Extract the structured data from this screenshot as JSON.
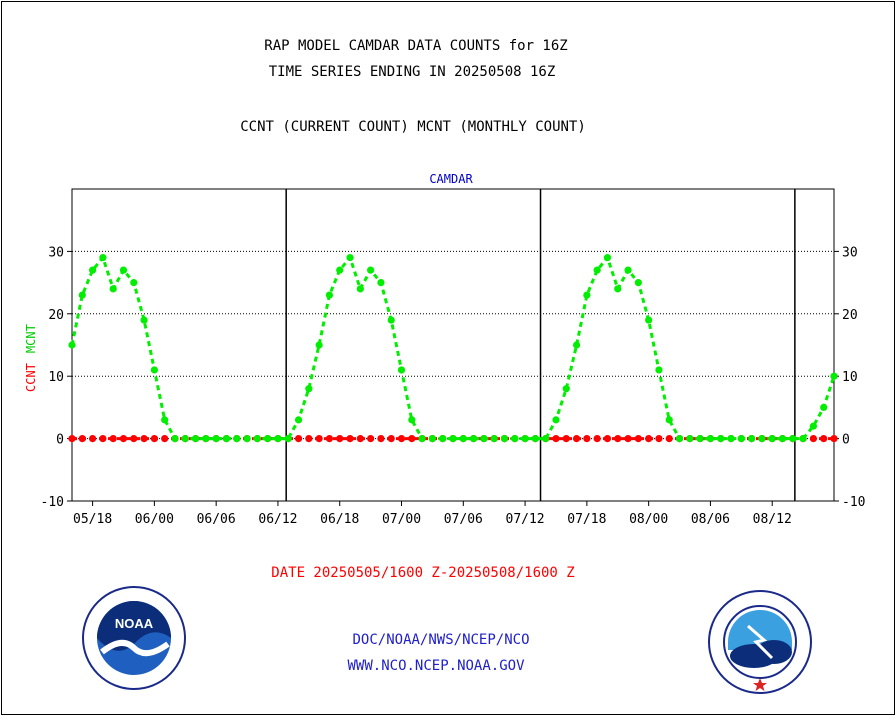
{
  "header": {
    "title_line1": "RAP MODEL CAMDAR DATA COUNTS for 16Z",
    "title_line2": "TIME SERIES ENDING IN 20250508 16Z",
    "title_line3": "CCNT (CURRENT COUNT) MCNT (MONTHLY COUNT)"
  },
  "footer": {
    "date_range": "DATE 20250505/1600 Z-20250508/1600 Z",
    "org": "DOC/NOAA/NWS/NCEP/NCO",
    "url": "WWW.NCO.NCEP.NOAA.GOV"
  },
  "logos": {
    "left": {
      "name": "noaa-logo",
      "text": "NOAA"
    },
    "right": {
      "name": "national-weather-service-logo",
      "text": "NATIONAL WEATHER SERVICE"
    }
  },
  "chart_data": {
    "type": "line",
    "title": "CAMDAR",
    "xlabel": "",
    "ylabel_parts": [
      "CCNT",
      "MCNT"
    ],
    "ylim": [
      -10,
      40
    ],
    "yticks": [
      -10,
      0,
      10,
      20,
      30
    ],
    "grid": "dotted horizontal at 0, 10, 20, 30",
    "x_unit": "hours since 2025-05-05 14:00 Z",
    "xlim": [
      0,
      74
    ],
    "xtick_positions": [
      2,
      8,
      14,
      20,
      26,
      32,
      38,
      44,
      50,
      56,
      62,
      68
    ],
    "xtick_labels": [
      "05/18",
      "06/00",
      "06/06",
      "06/12",
      "06/18",
      "07/00",
      "07/06",
      "07/12",
      "07/18",
      "08/00",
      "08/06",
      "08/12"
    ],
    "day_boundaries": [
      20.8,
      45.5,
      70.2
    ],
    "colors": {
      "CCNT": "#ff0000",
      "MCNT": "#00ee00",
      "axis": "#000000",
      "title": "#0000cc"
    },
    "series": [
      {
        "name": "CCNT",
        "color": "#ff0000",
        "x": [
          0,
          1,
          2,
          3,
          4,
          5,
          6,
          7,
          8,
          9,
          10,
          11,
          12,
          13,
          14,
          15,
          16,
          17,
          18,
          19,
          20,
          21,
          22,
          23,
          24,
          25,
          26,
          27,
          28,
          29,
          30,
          31,
          32,
          33,
          34,
          35,
          36,
          37,
          38,
          39,
          40,
          41,
          42,
          43,
          44,
          45,
          46,
          47,
          48,
          49,
          50,
          51,
          52,
          53,
          54,
          55,
          56,
          57,
          58,
          59,
          60,
          61,
          62,
          63,
          64,
          65,
          66,
          67,
          68,
          69,
          70,
          71,
          72,
          73,
          74
        ],
        "values": [
          0,
          0,
          0,
          0,
          0,
          0,
          0,
          0,
          0,
          0,
          0,
          0,
          0,
          0,
          0,
          0,
          0,
          0,
          0,
          0,
          0,
          0,
          0,
          0,
          0,
          0,
          0,
          0,
          0,
          0,
          0,
          0,
          0,
          0,
          0,
          0,
          0,
          0,
          0,
          0,
          0,
          0,
          0,
          0,
          0,
          0,
          0,
          0,
          0,
          0,
          0,
          0,
          0,
          0,
          0,
          0,
          0,
          0,
          0,
          0,
          0,
          0,
          0,
          0,
          0,
          0,
          0,
          0,
          0,
          0,
          0,
          0,
          0,
          0,
          0
        ]
      },
      {
        "name": "MCNT",
        "color": "#00ee00",
        "x": [
          0,
          1,
          2,
          3,
          4,
          5,
          6,
          7,
          8,
          9,
          10,
          11,
          12,
          13,
          14,
          15,
          16,
          17,
          18,
          19,
          20,
          21,
          22,
          23,
          24,
          25,
          26,
          27,
          28,
          29,
          30,
          31,
          32,
          33,
          34,
          35,
          36,
          37,
          38,
          39,
          40,
          41,
          42,
          43,
          44,
          45,
          46,
          47,
          48,
          49,
          50,
          51,
          52,
          53,
          54,
          55,
          56,
          57,
          58,
          59,
          60,
          61,
          62,
          63,
          64,
          65,
          66,
          67,
          68,
          69,
          70,
          71,
          72,
          73,
          74
        ],
        "values": [
          15,
          23,
          27,
          29,
          24,
          27,
          25,
          19,
          11,
          3,
          0,
          0,
          0,
          0,
          0,
          0,
          0,
          0,
          0,
          0,
          0,
          0,
          3,
          8,
          15,
          23,
          27,
          29,
          24,
          27,
          25,
          19,
          11,
          3,
          0,
          0,
          0,
          0,
          0,
          0,
          0,
          0,
          0,
          0,
          0,
          0,
          0,
          3,
          8,
          15,
          23,
          27,
          29,
          24,
          27,
          25,
          19,
          11,
          3,
          0,
          0,
          0,
          0,
          0,
          0,
          0,
          0,
          0,
          0,
          0,
          0,
          0,
          2,
          5,
          10
        ]
      }
    ]
  }
}
